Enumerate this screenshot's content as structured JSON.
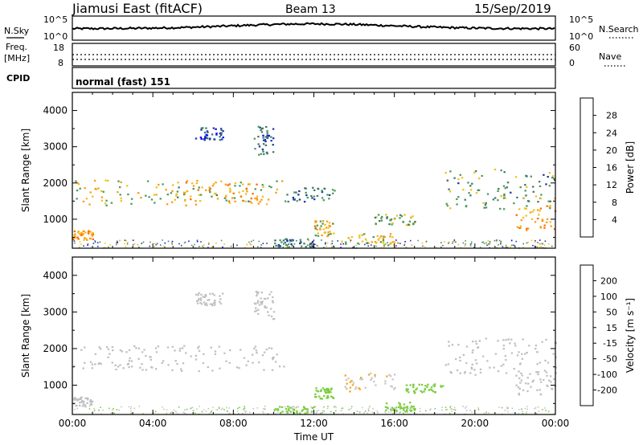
{
  "header": {
    "station": "Jiamusi East (fitACF)",
    "beam": "Beam 13",
    "date": "15/Sep/2019"
  },
  "summary": {
    "nsky_label": "N.Sky",
    "nsky_ticks": [
      "10^5",
      "10^0"
    ],
    "nsearch_label": "N.Search",
    "nsearch_ticks": [
      "10^5",
      "10^0"
    ],
    "freq_label_top": "Freq.",
    "freq_label_unit": "[MHz]",
    "freq_ticks": [
      "18",
      "8"
    ],
    "nave_label": "Nave",
    "nave_ticks": [
      "60",
      "0"
    ],
    "cpid_label": "CPID",
    "cpid_value": "normal (fast) 151"
  },
  "colors": {
    "power_scale": [
      "#1400ff",
      "#1a3aa8",
      "#3d7a6a",
      "#4e9a5a",
      "#f0c020",
      "#ff9a10",
      "#ff6a00",
      "#e02010"
    ],
    "velocity_scale": [
      "#e01010",
      "#ff5000",
      "#ff8c00",
      "#f5a623",
      "#c8c8c8",
      "#7ccc40",
      "#2e9a30",
      "#2e7a6a",
      "#2a50a0",
      "#1a20c0"
    ],
    "ground_scatter": "#c0c0c0"
  },
  "chart_data": [
    {
      "type": "heatmap",
      "panel": "power",
      "ylabel": "Slant Range [km]",
      "xlabel": "Time UT",
      "ylim": [
        200,
        4500
      ],
      "y_ticks": [
        "1000",
        "2000",
        "3000",
        "4000"
      ],
      "x_ticks": [
        "00:00",
        "04:00",
        "08:00",
        "12:00",
        "16:00",
        "20:00",
        "00:00"
      ],
      "colorbar_label": "Power [dB]",
      "colorbar_ticks": [
        "4",
        "8",
        "12",
        "16",
        "20",
        "24",
        "28"
      ],
      "colorbar_range": [
        0,
        30
      ],
      "regions": [
        {
          "t0": 0.0,
          "t1": 10.5,
          "r0": 1400,
          "r1": 2100,
          "v": 16
        },
        {
          "t0": 5.5,
          "t1": 9.8,
          "r0": 1500,
          "r1": 2050,
          "v": 21
        },
        {
          "t0": 10.5,
          "t1": 13.0,
          "r0": 1500,
          "r1": 1900,
          "v": 10
        },
        {
          "t0": 9.0,
          "t1": 10.0,
          "r0": 2800,
          "r1": 3600,
          "v": 8
        },
        {
          "t0": 6.0,
          "t1": 7.5,
          "r0": 3200,
          "r1": 3550,
          "v": 6
        },
        {
          "t0": 12.0,
          "t1": 13.0,
          "r0": 550,
          "r1": 1000,
          "v": 18
        },
        {
          "t0": 15.0,
          "t1": 17.0,
          "r0": 850,
          "r1": 1150,
          "v": 13
        },
        {
          "t0": 13.5,
          "t1": 16.0,
          "r0": 280,
          "r1": 620,
          "v": 17
        },
        {
          "t0": 10.0,
          "t1": 12.0,
          "r0": 250,
          "r1": 480,
          "v": 9
        },
        {
          "t0": 18.5,
          "t1": 24.0,
          "r0": 1300,
          "r1": 2400,
          "v": 12
        },
        {
          "t0": 22.0,
          "t1": 24.0,
          "r0": 700,
          "r1": 1400,
          "v": 20
        },
        {
          "t0": 0.0,
          "t1": 1.0,
          "r0": 450,
          "r1": 700,
          "v": 21
        }
      ]
    },
    {
      "type": "heatmap",
      "panel": "velocity",
      "ylabel": "Slant Range [km]",
      "xlabel": "Time UT",
      "ylim": [
        200,
        4500
      ],
      "y_ticks": [
        "1000",
        "2000",
        "3000",
        "4000"
      ],
      "x_ticks": [
        "00:00",
        "04:00",
        "08:00",
        "12:00",
        "16:00",
        "20:00",
        "00:00"
      ],
      "colorbar_label": "Velocity [m s⁻¹]",
      "colorbar_ticks": [
        "-200",
        "-100",
        "-50",
        "-15",
        "15",
        "50",
        "100",
        "200"
      ],
      "colorbar_range": [
        -250,
        250
      ],
      "regions": [
        {
          "t0": 0.0,
          "t1": 10.5,
          "r0": 1400,
          "r1": 2100,
          "v": 0
        },
        {
          "t0": 18.5,
          "t1": 24.0,
          "r0": 1300,
          "r1": 2300,
          "v": 0
        },
        {
          "t0": 9.0,
          "t1": 10.0,
          "r0": 2800,
          "r1": 3600,
          "v": 0
        },
        {
          "t0": 6.0,
          "t1": 7.5,
          "r0": 3200,
          "r1": 3550,
          "v": 0
        },
        {
          "t0": 13.5,
          "t1": 16.0,
          "r0": 850,
          "r1": 1350,
          "v": -45
        },
        {
          "t0": 12.0,
          "t1": 13.0,
          "r0": 650,
          "r1": 950,
          "v": 30
        },
        {
          "t0": 16.5,
          "t1": 18.5,
          "r0": 800,
          "r1": 1050,
          "v": 30
        },
        {
          "t0": 15.5,
          "t1": 17.0,
          "r0": 300,
          "r1": 550,
          "v": 30
        },
        {
          "t0": 10.0,
          "t1": 12.0,
          "r0": 250,
          "r1": 450,
          "v": 30
        },
        {
          "t0": 22.0,
          "t1": 24.0,
          "r0": 700,
          "r1": 1400,
          "v": 0
        },
        {
          "t0": 0.0,
          "t1": 1.0,
          "r0": 450,
          "r1": 700,
          "v": 0
        }
      ]
    }
  ]
}
